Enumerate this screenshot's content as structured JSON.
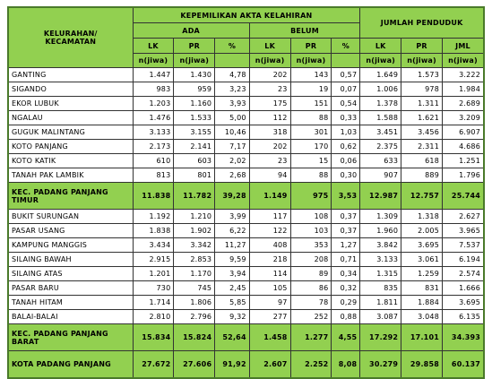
{
  "header": {
    "region": "KELURAHAN/ KECAMATAN",
    "group_main": "KEPEMILIKAN AKTA KELAHIRAN",
    "group_total": "JUMLAH PENDUDUK",
    "sub_ada": "ADA",
    "sub_belum": "BELUM",
    "columns": [
      "LK",
      "PR",
      "%",
      "LK",
      "PR",
      "%",
      "LK",
      "PR",
      "JML"
    ],
    "units": [
      "n(jiwa)",
      "n(jiwa)",
      null,
      "n(jiwa)",
      "n(jiwa)",
      null,
      "n(jiwa)",
      "n(jiwa)",
      "n(jiwa)"
    ]
  },
  "table": {
    "rows": [
      {
        "label": "GANTING",
        "cells": [
          "1.447",
          "1.430",
          "4,78",
          "202",
          "143",
          "0,57",
          "1.649",
          "1.573",
          "3.222"
        ]
      },
      {
        "label": "SIGANDO",
        "cells": [
          "983",
          "959",
          "3,23",
          "23",
          "19",
          "0,07",
          "1.006",
          "978",
          "1.984"
        ]
      },
      {
        "label": "EKOR LUBUK",
        "cells": [
          "1.203",
          "1.160",
          "3,93",
          "175",
          "151",
          "0,54",
          "1.378",
          "1.311",
          "2.689"
        ]
      },
      {
        "label": "NGALAU",
        "cells": [
          "1.476",
          "1.533",
          "5,00",
          "112",
          "88",
          "0,33",
          "1.588",
          "1.621",
          "3.209"
        ]
      },
      {
        "label": "GUGUK  MALINTANG",
        "cells": [
          "3.133",
          "3.155",
          "10,46",
          "318",
          "301",
          "1,03",
          "3.451",
          "3.456",
          "6.907"
        ]
      },
      {
        "label": "KOTO PANJANG",
        "cells": [
          "2.173",
          "2.141",
          "7,17",
          "202",
          "170",
          "0,62",
          "2.375",
          "2.311",
          "4.686"
        ]
      },
      {
        "label": "KOTO KATIK",
        "cells": [
          "610",
          "603",
          "2,02",
          "23",
          "15",
          "0,06",
          "633",
          "618",
          "1.251"
        ]
      },
      {
        "label": "TANAH PAK LAMBIK",
        "cells": [
          "813",
          "801",
          "2,68",
          "94",
          "88",
          "0,30",
          "907",
          "889",
          "1.796"
        ]
      },
      {
        "label": "KEC. PADANG PANJANG TIMUR",
        "highlight": true,
        "cells": [
          "11.838",
          "11.782",
          "39,28",
          "1.149",
          "975",
          "3,53",
          "12.987",
          "12.757",
          "25.744"
        ]
      },
      {
        "label": "BUKIT SURUNGAN",
        "cells": [
          "1.192",
          "1.210",
          "3,99",
          "117",
          "108",
          "0,37",
          "1.309",
          "1.318",
          "2.627"
        ]
      },
      {
        "label": "PASAR USANG",
        "cells": [
          "1.838",
          "1.902",
          "6,22",
          "122",
          "103",
          "0,37",
          "1.960",
          "2.005",
          "3.965"
        ]
      },
      {
        "label": "KAMPUNG MANGGIS",
        "cells": [
          "3.434",
          "3.342",
          "11,27",
          "408",
          "353",
          "1,27",
          "3.842",
          "3.695",
          "7.537"
        ]
      },
      {
        "label": "SILAING BAWAH",
        "cells": [
          "2.915",
          "2.853",
          "9,59",
          "218",
          "208",
          "0,71",
          "3.133",
          "3.061",
          "6.194"
        ]
      },
      {
        "label": "SILAING ATAS",
        "cells": [
          "1.201",
          "1.170",
          "3,94",
          "114",
          "89",
          "0,34",
          "1.315",
          "1.259",
          "2.574"
        ]
      },
      {
        "label": "PASAR BARU",
        "cells": [
          "730",
          "745",
          "2,45",
          "105",
          "86",
          "0,32",
          "835",
          "831",
          "1.666"
        ]
      },
      {
        "label": "TANAH HITAM",
        "cells": [
          "1.714",
          "1.806",
          "5,85",
          "97",
          "78",
          "0,29",
          "1.811",
          "1.884",
          "3.695"
        ]
      },
      {
        "label": "BALAI-BALAI",
        "cells": [
          "2.810",
          "2.796",
          "9,32",
          "277",
          "252",
          "0,88",
          "3.087",
          "3.048",
          "6.135"
        ]
      },
      {
        "label": "KEC. PADANG PANJANG BARAT",
        "highlight": true,
        "cells": [
          "15.834",
          "15.824",
          "52,64",
          "1.458",
          "1.277",
          "4,55",
          "17.292",
          "17.101",
          "34.393"
        ]
      },
      {
        "label": "KOTA PADANG PANJANG",
        "highlight": true,
        "cells": [
          "27.672",
          "27.606",
          "91,92",
          "2.607",
          "2.252",
          "8,08",
          "30.279",
          "29.858",
          "60.137"
        ]
      }
    ]
  }
}
